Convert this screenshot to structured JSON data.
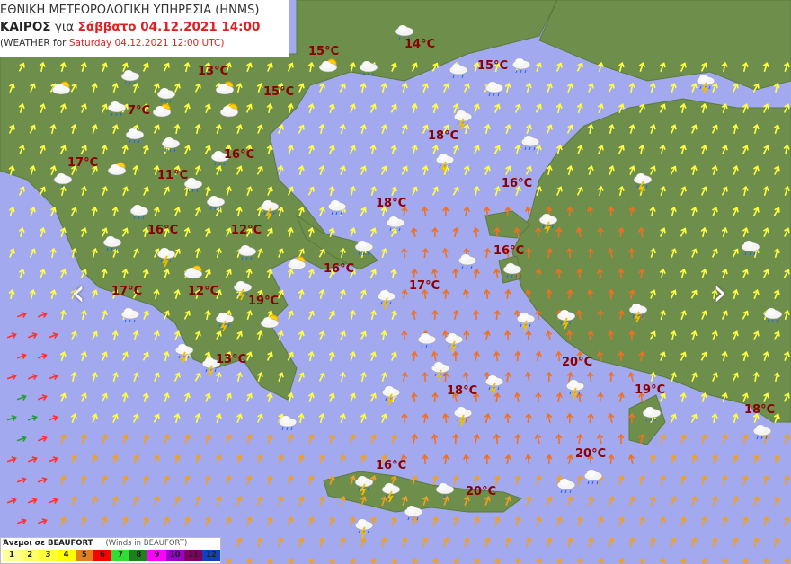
{
  "header": {
    "agency": "ΕΘΝΙΚΗ ΜΕΤΕΩΡΟΛΟΓΙΚΗ ΥΠΗΡΕΣΙΑ (HNMS)",
    "weather_gr": "ΚΑΙΡΟΣ",
    "for_gr": "για",
    "date_gr": "Σάββατο 04.12.2021 14:00",
    "weather_en_prefix": "(WEATHER for",
    "date_en": "Saturday 04.12.2021 12:00 UTC)"
  },
  "temperatures": [
    "15°C",
    "14°C",
    "15°C",
    "13°C",
    "15°C",
    "7°C",
    "18°C",
    "17°C",
    "16°C",
    "11°C",
    "16°C",
    "18°C",
    "16°C",
    "12°C",
    "16°C",
    "16°C",
    "17°C",
    "17°C",
    "12°C",
    "19°C",
    "13°C",
    "20°C",
    "18°C",
    "19°C",
    "18°C",
    "20°C",
    "16°C",
    "20°C"
  ],
  "navigation": {
    "prev_icon": "chevron-left-icon",
    "next_icon": "chevron-right-icon"
  },
  "legend": {
    "title_gr": "Άνεμοι σε BEAUFORT",
    "title_en": "(Winds in BEAUFORT)",
    "levels": [
      {
        "label": "1",
        "color": "#ffff99"
      },
      {
        "label": "2",
        "color": "#ffff66"
      },
      {
        "label": "3",
        "color": "#ffff33"
      },
      {
        "label": "4",
        "color": "#ffff00"
      },
      {
        "label": "5",
        "color": "#e08020"
      },
      {
        "label": "6",
        "color": "#ff0000"
      },
      {
        "label": "7",
        "color": "#33dd33"
      },
      {
        "label": "8",
        "color": "#208020"
      },
      {
        "label": "9",
        "color": "#ff00ff"
      },
      {
        "label": "10",
        "color": "#9900cc"
      },
      {
        "label": "11",
        "color": "#800060"
      },
      {
        "label": "12",
        "color": "#1040c0"
      }
    ]
  },
  "colors": {
    "sea": "#a3a9ef",
    "land": "#6e8f4c",
    "temp": "#8b0000"
  }
}
